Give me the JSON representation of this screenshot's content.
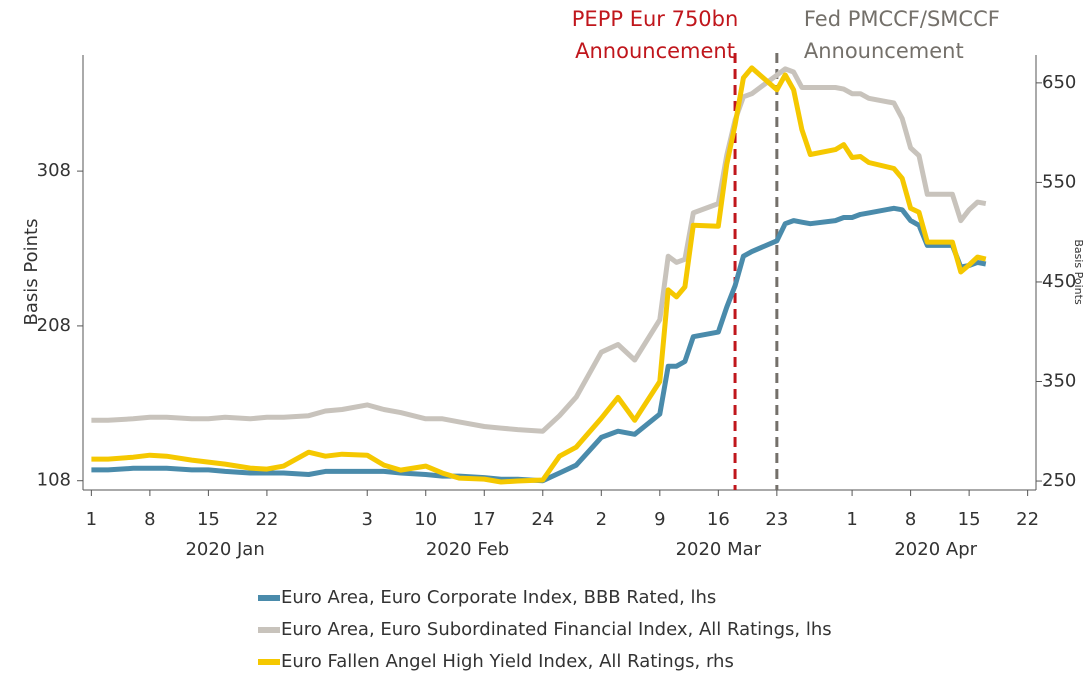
{
  "chart_data": {
    "type": "line",
    "y_label": "Basis Points",
    "y2_label": "Basis Points",
    "x": [
      "2020-01-01",
      "2020-01-03",
      "2020-01-06",
      "2020-01-08",
      "2020-01-10",
      "2020-01-13",
      "2020-01-15",
      "2020-01-17",
      "2020-01-20",
      "2020-01-22",
      "2020-01-24",
      "2020-01-27",
      "2020-01-29",
      "2020-01-31",
      "2020-02-03",
      "2020-02-05",
      "2020-02-07",
      "2020-02-10",
      "2020-02-12",
      "2020-02-14",
      "2020-02-17",
      "2020-02-19",
      "2020-02-21",
      "2020-02-24",
      "2020-02-26",
      "2020-02-28",
      "2020-03-02",
      "2020-03-04",
      "2020-03-06",
      "2020-03-09",
      "2020-03-10",
      "2020-03-11",
      "2020-03-12",
      "2020-03-13",
      "2020-03-16",
      "2020-03-17",
      "2020-03-18",
      "2020-03-19",
      "2020-03-20",
      "2020-03-23",
      "2020-03-24",
      "2020-03-25",
      "2020-03-26",
      "2020-03-27",
      "2020-03-30",
      "2020-03-31",
      "2020-04-01",
      "2020-04-02",
      "2020-04-03",
      "2020-04-06",
      "2020-04-07",
      "2020-04-08",
      "2020-04-09",
      "2020-04-10",
      "2020-04-13",
      "2020-04-14",
      "2020-04-15",
      "2020-04-16",
      "2020-04-17"
    ],
    "series": [
      {
        "name": "Euro Area, Euro Corporate Index, BBB Rated, lhs",
        "color": "#4a8bab",
        "axis": "y",
        "values": [
          115,
          115,
          116,
          116,
          116,
          115,
          115,
          114,
          113,
          113,
          113,
          112,
          114,
          114,
          114,
          114,
          113,
          112,
          111,
          111,
          110,
          109,
          109,
          108,
          113,
          118,
          136,
          140,
          138,
          151,
          182,
          182,
          185,
          201,
          204,
          220,
          234,
          253,
          256,
          263,
          274,
          276,
          275,
          274,
          276,
          278,
          278,
          280,
          281,
          284,
          283,
          276,
          273,
          260,
          260,
          246,
          247,
          249,
          248
        ]
      },
      {
        "name": "Euro Area, Euro Subordinated Financial Index, All Ratings, lhs",
        "color": "#c8c3bc",
        "axis": "y",
        "values": [
          147,
          147,
          148,
          149,
          149,
          148,
          148,
          149,
          148,
          149,
          149,
          150,
          153,
          154,
          157,
          154,
          152,
          148,
          148,
          146,
          143,
          142,
          141,
          140,
          150,
          162,
          191,
          196,
          186,
          212,
          253,
          249,
          251,
          281,
          287,
          318,
          341,
          356,
          358,
          370,
          374,
          372,
          362,
          362,
          362,
          361,
          358,
          358,
          355,
          352,
          342,
          323,
          318,
          293,
          293,
          276,
          283,
          288,
          287
        ]
      },
      {
        "name": "Euro Fallen Angel High Yield Index, All Ratings, rhs",
        "color": "#f5c800",
        "axis": "y2",
        "values": [
          272,
          272,
          274,
          276,
          275,
          271,
          269,
          267,
          263,
          262,
          265,
          279,
          275,
          277,
          276,
          266,
          261,
          265,
          258,
          253,
          252,
          249,
          250,
          251,
          275,
          284,
          313,
          334,
          311,
          350,
          442,
          435,
          445,
          507,
          506,
          568,
          608,
          655,
          665,
          643,
          658,
          643,
          603,
          578,
          583,
          588,
          575,
          576,
          570,
          564,
          554,
          524,
          520,
          490,
          490,
          460,
          467,
          475,
          473
        ]
      }
    ],
    "xlim": [
      "2019-12-31",
      "2020-04-23"
    ],
    "xticks": [
      {
        "value": "2020-01-01",
        "label": "1"
      },
      {
        "value": "2020-01-08",
        "label": "8"
      },
      {
        "value": "2020-01-15",
        "label": "15"
      },
      {
        "value": "2020-01-22",
        "label": "22"
      },
      {
        "value": "2020-02-03",
        "label": "3"
      },
      {
        "value": "2020-02-10",
        "label": "10"
      },
      {
        "value": "2020-02-17",
        "label": "17"
      },
      {
        "value": "2020-02-24",
        "label": "24"
      },
      {
        "value": "2020-03-02",
        "label": "2"
      },
      {
        "value": "2020-03-09",
        "label": "9"
      },
      {
        "value": "2020-03-16",
        "label": "16"
      },
      {
        "value": "2020-03-23",
        "label": "23"
      },
      {
        "value": "2020-04-01",
        "label": "1"
      },
      {
        "value": "2020-04-08",
        "label": "8"
      },
      {
        "value": "2020-04-15",
        "label": "15"
      },
      {
        "value": "2020-04-22",
        "label": "22"
      }
    ],
    "month_labels": [
      {
        "value": "2020-01-17",
        "label": "2020 Jan"
      },
      {
        "value": "2020-02-15",
        "label": "2020 Feb"
      },
      {
        "value": "2020-03-16",
        "label": "2020 Mar"
      },
      {
        "value": "2020-04-11",
        "label": "2020 Apr"
      }
    ],
    "ylim": [
      102,
      383
    ],
    "yticks": [
      108,
      208,
      308
    ],
    "y2lim": [
      241,
      678
    ],
    "y2ticks": [
      250,
      350,
      450,
      550,
      650
    ],
    "annotations": [
      {
        "x": "2020-03-18",
        "color": "#c0161c",
        "lines": [
          "PEPP Eur 750bn",
          "Announcement"
        ],
        "side": "left"
      },
      {
        "x": "2020-03-23",
        "color": "#74706a",
        "lines": [
          "Fed PMCCF/SMCCF",
          "Announcement"
        ],
        "side": "right"
      }
    ]
  }
}
